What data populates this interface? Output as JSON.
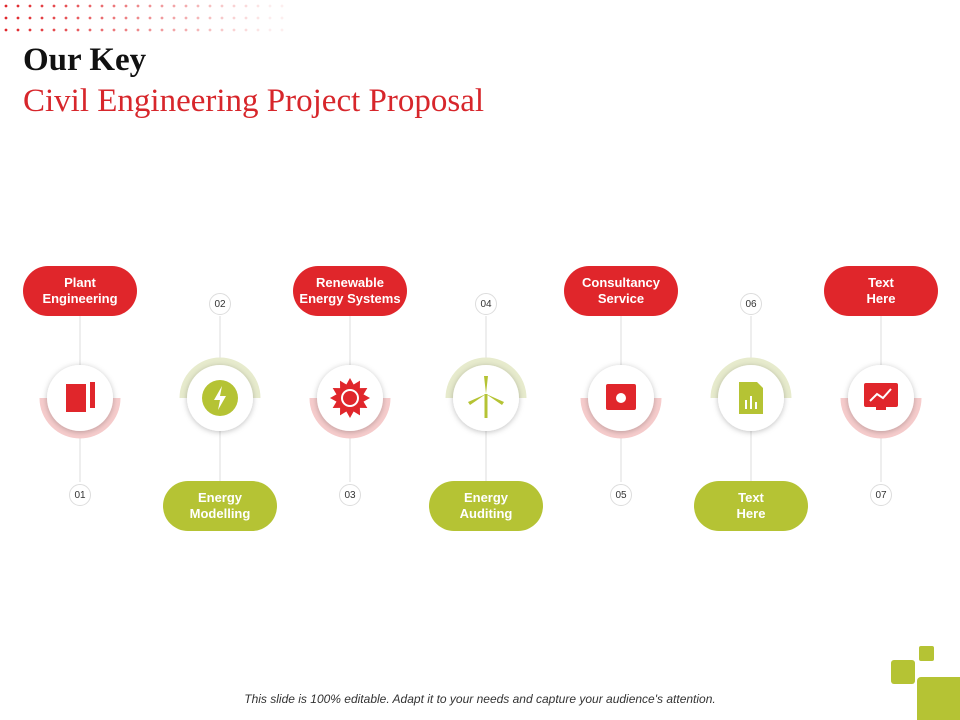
{
  "header": {
    "title": "Our Key",
    "subtitle": "Civil Engineering Project Proposal"
  },
  "steps": [
    {
      "number": "01",
      "label": "Plant\nEngineering"
    },
    {
      "number": "02",
      "label": "Energy\nModelling"
    },
    {
      "number": "03",
      "label": "Renewable\nEnergy  Systems"
    },
    {
      "number": "04",
      "label": "Energy\nAuditing"
    },
    {
      "number": "05",
      "label": "Consultancy\nService"
    },
    {
      "number": "06",
      "label": "Text\nHere"
    },
    {
      "number": "07",
      "label": "Text\nHere"
    }
  ],
  "footer": "This slide is 100% editable. Adapt it to your needs and capture your audience's attention."
}
